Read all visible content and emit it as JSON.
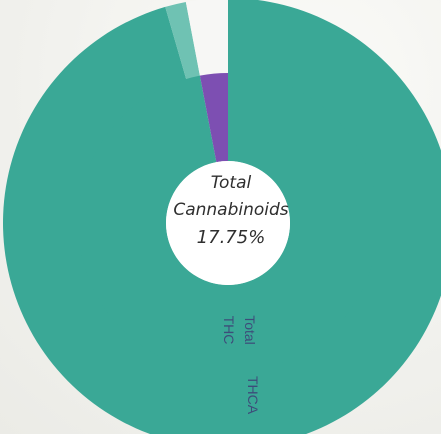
{
  "chart_data": {
    "type": "pie",
    "title": "",
    "center_text": {
      "line1": "Total",
      "line2": "Cannabinoids",
      "value": "17.75%"
    },
    "rings": [
      {
        "name": "Total THC",
        "position": "inner",
        "slices": [
          {
            "label": "Total THC",
            "fraction": 0.97,
            "color": "#3aa896"
          },
          {
            "label": "",
            "fraction": 0.03,
            "color": "#7d4fb2"
          }
        ]
      },
      {
        "name": "THCA",
        "position": "outer",
        "slices": [
          {
            "label": "THCA",
            "fraction": 0.955,
            "color": "#3aa896"
          },
          {
            "label": "",
            "fraction": 0.015,
            "color": "#6fc2b3"
          },
          {
            "label": "",
            "fraction": 0.03,
            "color": "#f7f7f5"
          }
        ]
      }
    ],
    "ring_labels": {
      "inner_line1": "Total",
      "inner_line2": "THC",
      "outer": "THCA"
    },
    "colors": {
      "teal": "#3aa896",
      "teal_dark": "#35a08e",
      "teal_light": "#6fc2b3",
      "purple": "#7d4fb2",
      "gap": "#f7f7f5"
    }
  }
}
